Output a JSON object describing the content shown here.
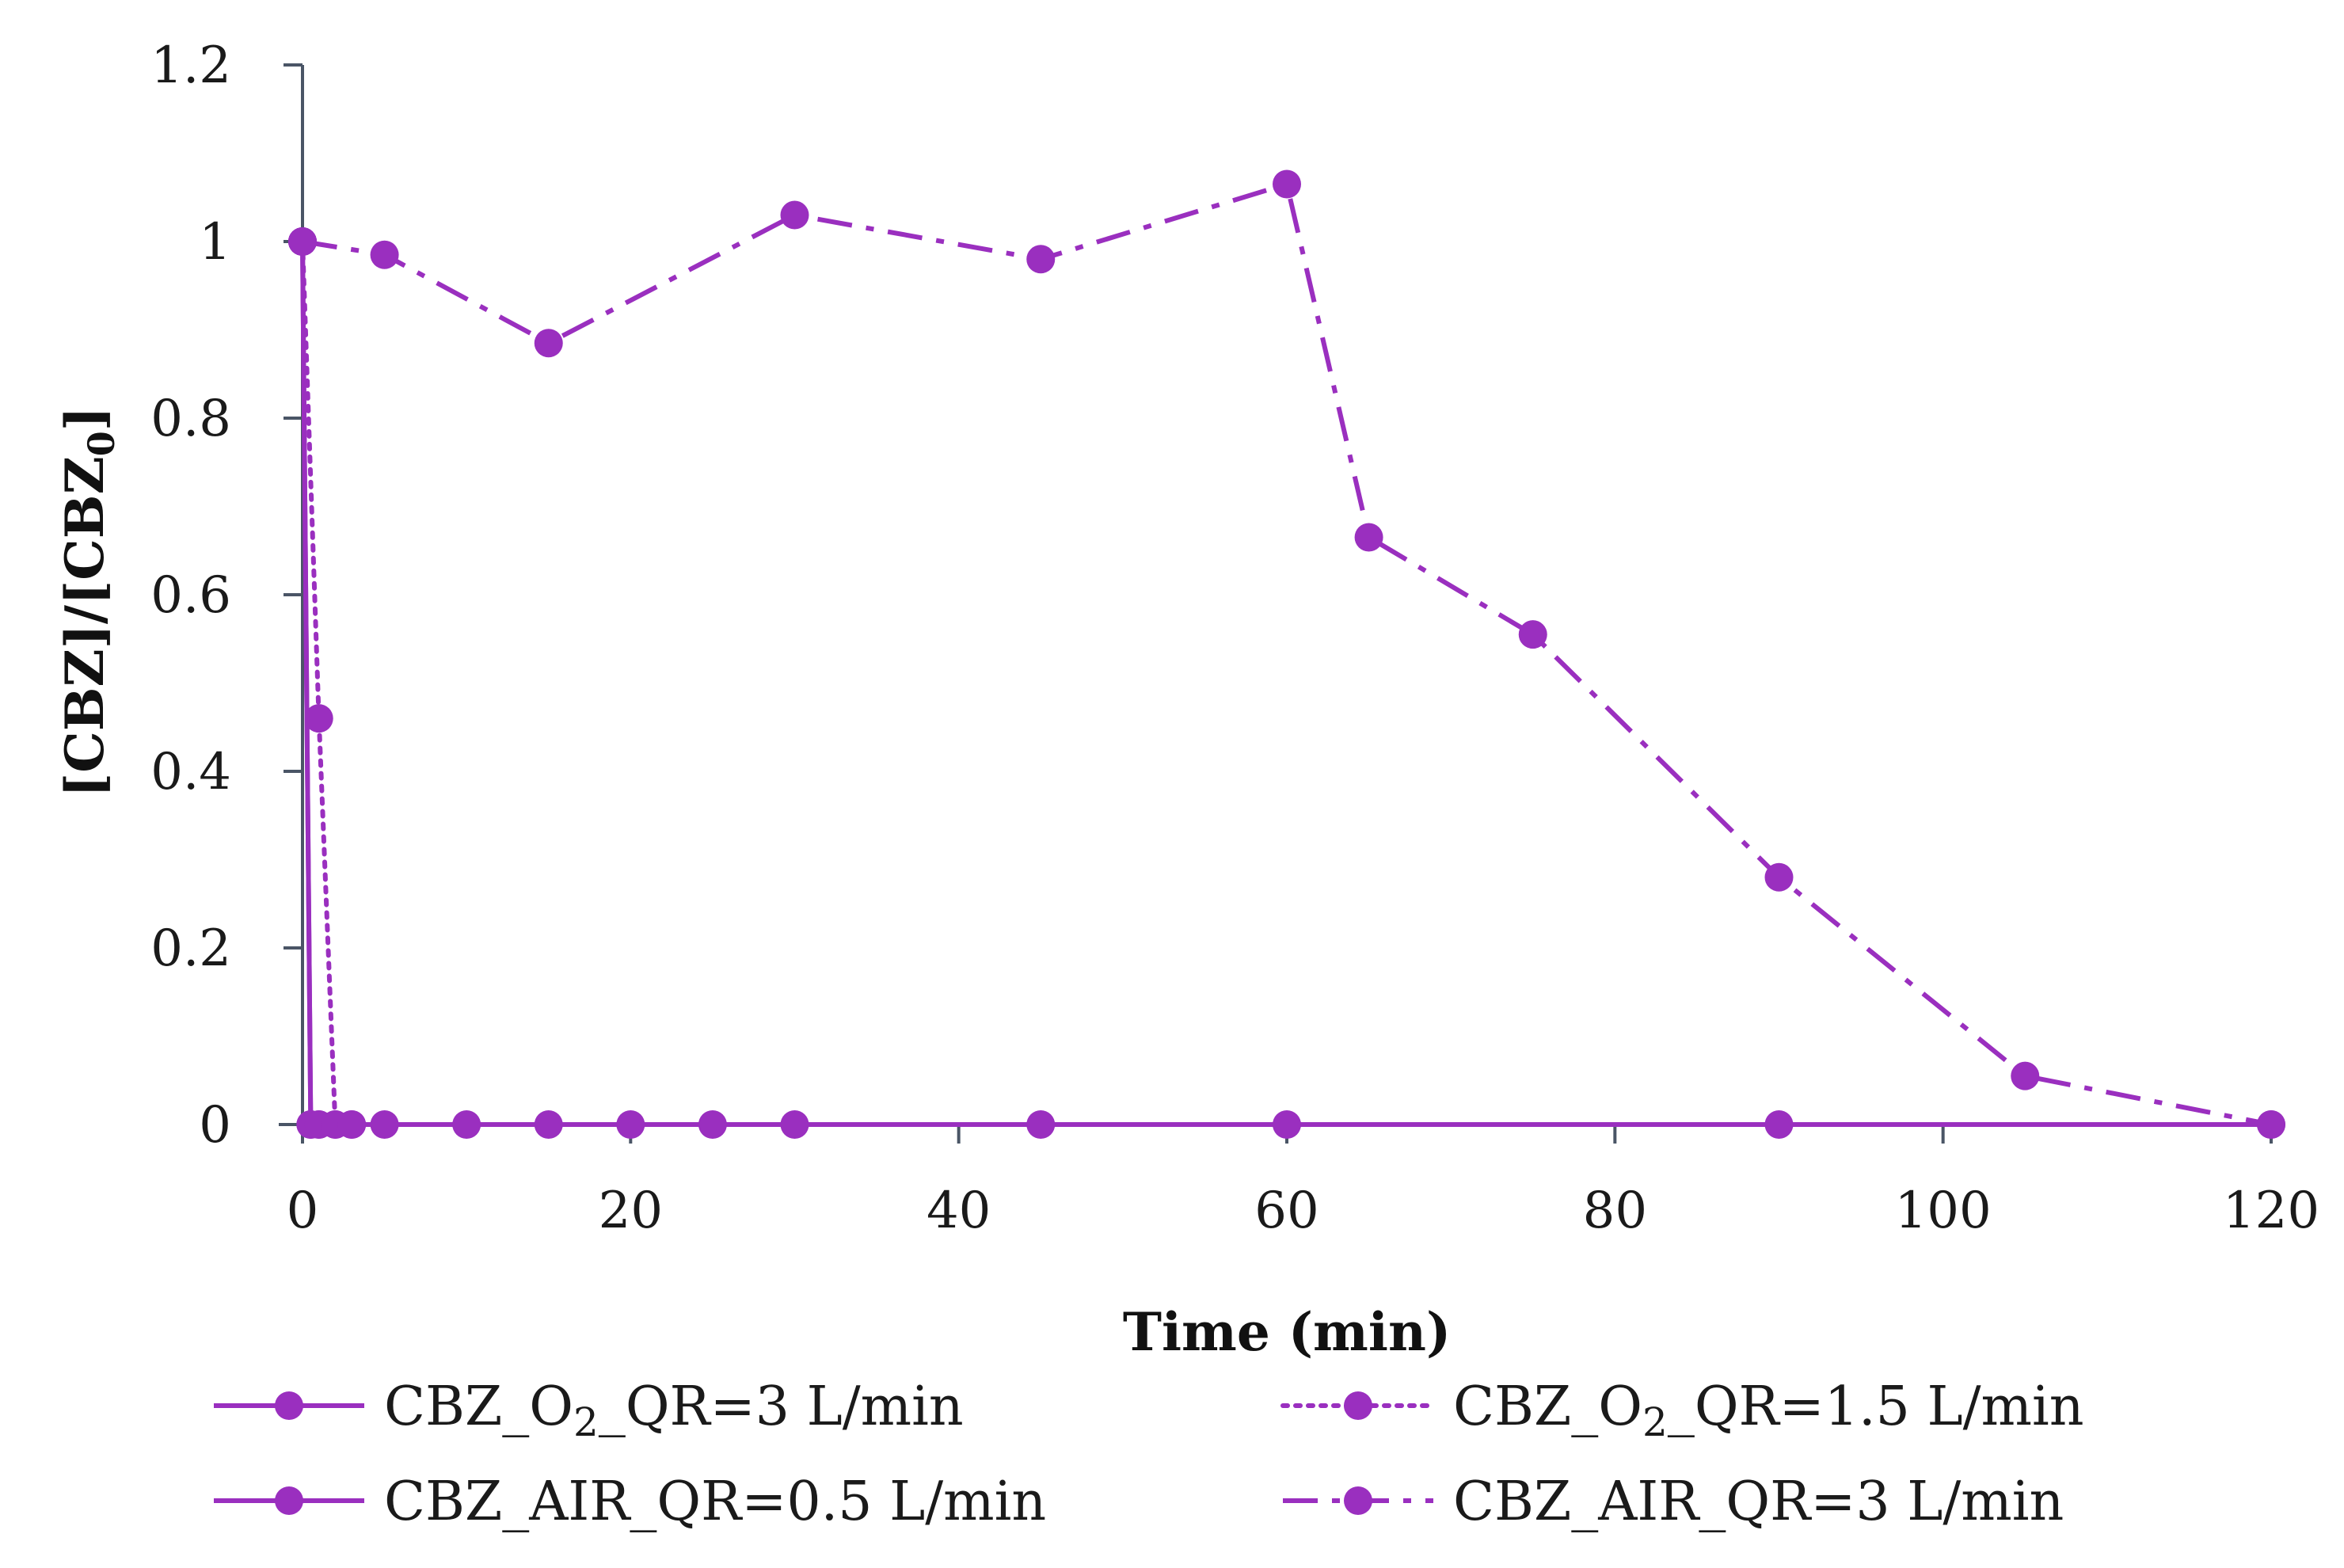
{
  "chart_data": {
    "type": "line",
    "title": "",
    "xlabel": "Time (min)",
    "ylabel": "[CBZ]/[CBZ0]",
    "xlim": [
      0,
      120
    ],
    "ylim": [
      0,
      1.2
    ],
    "xticks": [
      "0",
      "20",
      "40",
      "60",
      "80",
      "100",
      "120"
    ],
    "yticks": [
      "0",
      "0.2",
      "0.4",
      "0.6",
      "0.8",
      "1",
      "1.2"
    ],
    "color": "#9a2fbf",
    "series": [
      {
        "name": "CBZ_O2_QR=3 L/min",
        "legend_parts": [
          "CBZ_O",
          "2",
          "_QR=3 L/min"
        ],
        "line_style": "solid",
        "x": [
          0,
          0.5,
          1,
          2,
          3,
          5,
          10,
          15,
          20,
          25,
          30,
          45,
          60,
          90,
          120
        ],
        "y": [
          1,
          0,
          0,
          0,
          0,
          0,
          0,
          0,
          0,
          0,
          0,
          0,
          0,
          0,
          0
        ]
      },
      {
        "name": "CBZ_O2_QR=1.5 L/min",
        "legend_parts": [
          "CBZ_O",
          "2",
          "_QR=1.5 L/min"
        ],
        "line_style": "dotted",
        "x": [
          0,
          1,
          2,
          3
        ],
        "y": [
          1,
          0.46,
          0,
          0
        ]
      },
      {
        "name": "CBZ_AIR_QR=0.5 L/min",
        "legend_parts": [
          "CBZ_AIR_QR=0.5 L/min"
        ],
        "line_style": "solid",
        "x": [
          0,
          0.5,
          1
        ],
        "y": [
          1,
          0,
          0
        ]
      },
      {
        "name": "CBZ_AIR_QR=3 L/min",
        "legend_parts": [
          "CBZ_AIR_QR=3 L/min"
        ],
        "line_style": "dash-dot",
        "x": [
          0,
          5,
          15,
          30,
          45,
          60,
          65,
          75,
          90,
          105,
          120
        ],
        "y": [
          1,
          0.985,
          0.885,
          1.03,
          0.98,
          1.065,
          0.665,
          0.555,
          0.28,
          0.055,
          0
        ]
      }
    ]
  }
}
